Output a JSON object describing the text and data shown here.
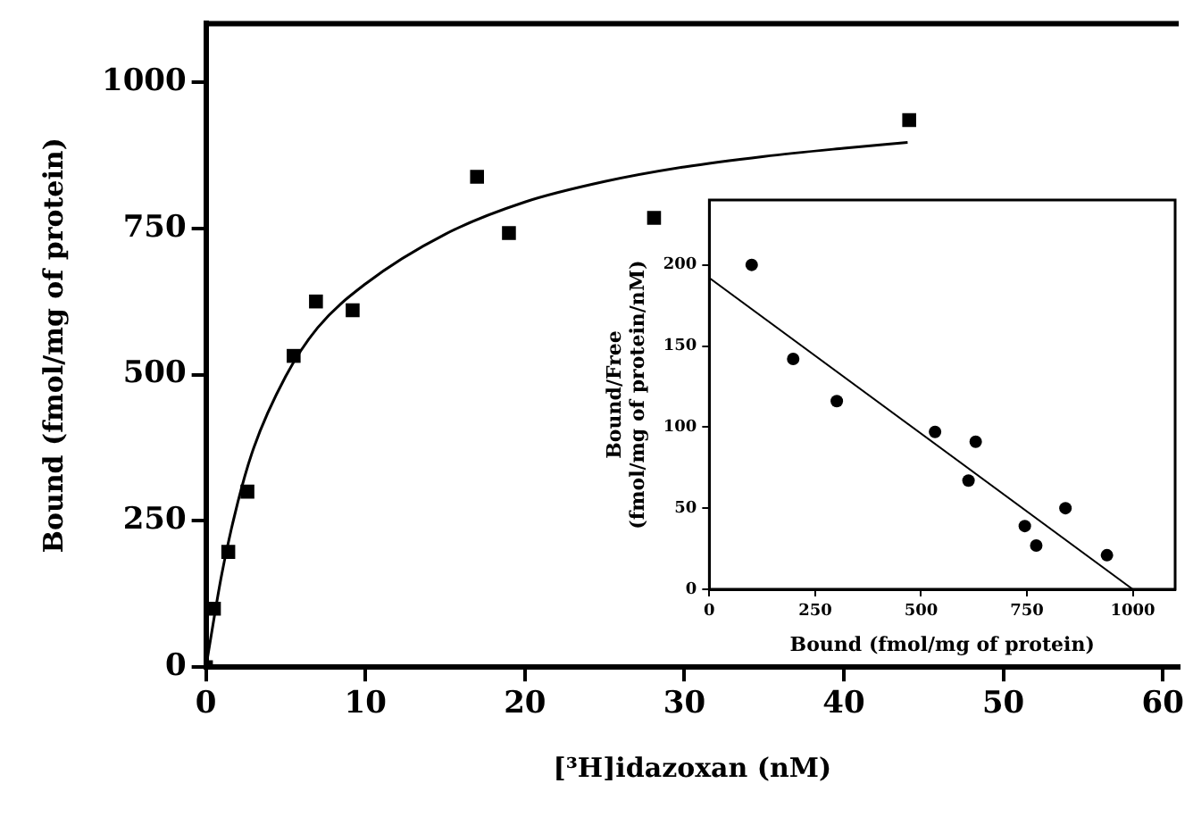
{
  "chart_data": [
    {
      "type": "scatter",
      "xlabel": "[³H]idazoxan (nM)",
      "ylabel": "Bound (fmol/mg of protein)",
      "xlim": [
        0,
        61
      ],
      "ylim": [
        0,
        1100
      ],
      "xticks": [
        0,
        10,
        20,
        30,
        40,
        50,
        60
      ],
      "yticks": [
        0,
        250,
        500,
        750,
        1000
      ],
      "grid": false,
      "legend": false,
      "series": [
        {
          "marker": "square",
          "color": "#000000",
          "x": [
            0,
            0.5,
            1.4,
            2.6,
            5.5,
            6.9,
            9.2,
            17,
            19,
            28.1,
            44.1
          ],
          "values": [
            0,
            100,
            197,
            300,
            532,
            625,
            610,
            838,
            742,
            768,
            935
          ]
        },
        {
          "type": "line",
          "marker": "none",
          "color": "#000000",
          "x": [
            0,
            1,
            2,
            3,
            5,
            7,
            10,
            15,
            20,
            25,
            30,
            35,
            40,
            44
          ],
          "values": [
            0,
            160,
            282,
            375,
            497,
            580,
            655,
            740,
            795,
            830,
            855,
            873,
            887,
            897
          ]
        }
      ]
    },
    {
      "type": "scatter",
      "xlabel": "Bound (fmol/mg of protein)",
      "ylabel": "Bound/Free\n(fmol/mg of protein/nM)",
      "xlim": [
        0,
        1100
      ],
      "ylim": [
        0,
        240
      ],
      "xticks": [
        0,
        250,
        500,
        750,
        1000
      ],
      "yticks": [
        0,
        50,
        100,
        150,
        200
      ],
      "grid": false,
      "legend": false,
      "series": [
        {
          "marker": "circle",
          "color": "#000000",
          "x": [
            100,
            198,
            301,
            533,
            629,
            612,
            745,
            772,
            841,
            939
          ],
          "values": [
            200,
            142,
            116,
            97,
            91,
            67,
            39,
            27,
            50,
            21
          ]
        },
        {
          "type": "line",
          "marker": "none",
          "color": "#000000",
          "x": [
            0,
            1000
          ],
          "values": [
            192,
            0
          ]
        }
      ]
    }
  ]
}
